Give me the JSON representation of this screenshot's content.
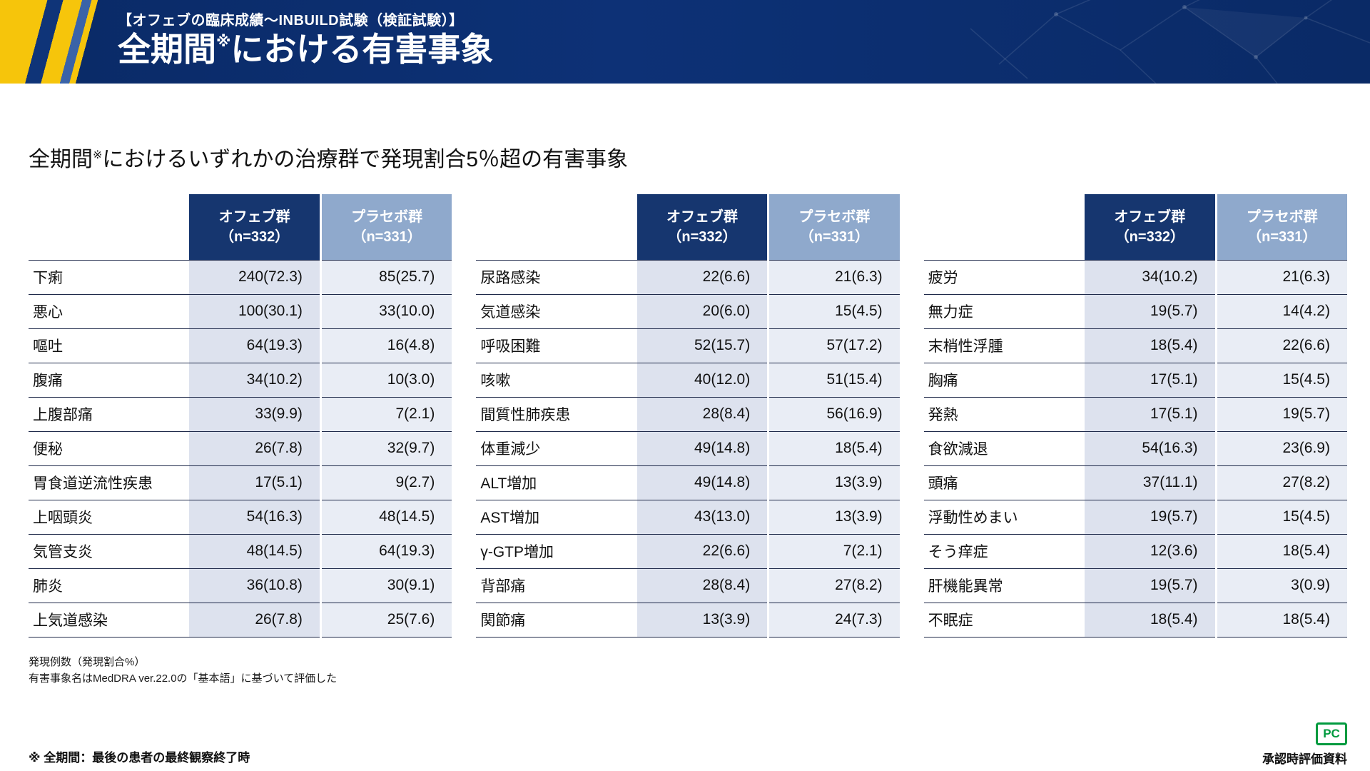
{
  "header": {
    "subtitle": "【オフェブの臨床成績〜INBUILD試験（検証試験）】",
    "title_main": "全期間",
    "title_sup": "※",
    "title_rest": "における有害事象"
  },
  "section": {
    "title_main": "全期間",
    "title_sup": "※",
    "title_rest": "におけるいずれかの治療群で発現割合5％超の有害事象"
  },
  "column_headers": {
    "ofev_name": "オフェブ群",
    "ofev_n": "（n=332）",
    "placebo_name": "プラセボ群",
    "placebo_n": "（n=331）"
  },
  "tables": [
    {
      "rows": [
        {
          "label": "下痢",
          "ofev": "240(72.3)",
          "placebo": "85(25.7)"
        },
        {
          "label": "悪心",
          "ofev": "100(30.1)",
          "placebo": "33(10.0)"
        },
        {
          "label": "嘔吐",
          "ofev": "64(19.3)",
          "placebo": "16(4.8)"
        },
        {
          "label": "腹痛",
          "ofev": "34(10.2)",
          "placebo": "10(3.0)"
        },
        {
          "label": "上腹部痛",
          "ofev": "33(9.9)",
          "placebo": "7(2.1)"
        },
        {
          "label": "便秘",
          "ofev": "26(7.8)",
          "placebo": "32(9.7)"
        },
        {
          "label": "胃食道逆流性疾患",
          "ofev": "17(5.1)",
          "placebo": "9(2.7)"
        },
        {
          "label": "上咽頭炎",
          "ofev": "54(16.3)",
          "placebo": "48(14.5)"
        },
        {
          "label": "気管支炎",
          "ofev": "48(14.5)",
          "placebo": "64(19.3)"
        },
        {
          "label": "肺炎",
          "ofev": "36(10.8)",
          "placebo": "30(9.1)"
        },
        {
          "label": "上気道感染",
          "ofev": "26(7.8)",
          "placebo": "25(7.6)"
        }
      ]
    },
    {
      "rows": [
        {
          "label": "尿路感染",
          "ofev": "22(6.6)",
          "placebo": "21(6.3)"
        },
        {
          "label": "気道感染",
          "ofev": "20(6.0)",
          "placebo": "15(4.5)"
        },
        {
          "label": "呼吸困難",
          "ofev": "52(15.7)",
          "placebo": "57(17.2)"
        },
        {
          "label": "咳嗽",
          "ofev": "40(12.0)",
          "placebo": "51(15.4)"
        },
        {
          "label": "間質性肺疾患",
          "ofev": "28(8.4)",
          "placebo": "56(16.9)"
        },
        {
          "label": "体重減少",
          "ofev": "49(14.8)",
          "placebo": "18(5.4)"
        },
        {
          "label": "ALT増加",
          "ofev": "49(14.8)",
          "placebo": "13(3.9)"
        },
        {
          "label": "AST増加",
          "ofev": "43(13.0)",
          "placebo": "13(3.9)"
        },
        {
          "label": "γ-GTP増加",
          "ofev": "22(6.6)",
          "placebo": "7(2.1)"
        },
        {
          "label": "背部痛",
          "ofev": "28(8.4)",
          "placebo": "27(8.2)"
        },
        {
          "label": "関節痛",
          "ofev": "13(3.9)",
          "placebo": "24(7.3)"
        }
      ]
    },
    {
      "rows": [
        {
          "label": "疲労",
          "ofev": "34(10.2)",
          "placebo": "21(6.3)"
        },
        {
          "label": "無力症",
          "ofev": "19(5.7)",
          "placebo": "14(4.2)"
        },
        {
          "label": "末梢性浮腫",
          "ofev": "18(5.4)",
          "placebo": "22(6.6)"
        },
        {
          "label": "胸痛",
          "ofev": "17(5.1)",
          "placebo": "15(4.5)"
        },
        {
          "label": "発熱",
          "ofev": "17(5.1)",
          "placebo": "19(5.7)"
        },
        {
          "label": "食欲減退",
          "ofev": "54(16.3)",
          "placebo": "23(6.9)"
        },
        {
          "label": "頭痛",
          "ofev": "37(11.1)",
          "placebo": "27(8.2)"
        },
        {
          "label": "浮動性めまい",
          "ofev": "19(5.7)",
          "placebo": "15(4.5)"
        },
        {
          "label": "そう痒症",
          "ofev": "12(3.6)",
          "placebo": "18(5.4)"
        },
        {
          "label": "肝機能異常",
          "ofev": "19(5.7)",
          "placebo": "3(0.9)"
        },
        {
          "label": "不眠症",
          "ofev": "18(5.4)",
          "placebo": "18(5.4)"
        }
      ]
    }
  ],
  "footnotes": [
    "発現例数（発現割合%）",
    "有害事象名はMedDRA ver.22.0の「基本語」に基づいて評価した"
  ],
  "footer": {
    "note": "※ 全期間：最後の患者の最終観察終了時",
    "right": "承認時評価資料",
    "logo": "PC"
  },
  "colors": {
    "banner_bg": "#0b2c6a",
    "accent_yellow": "#f6c50b",
    "ofev_header_bg": "#16366f",
    "placebo_header_bg": "#8fa9cc",
    "ofev_cell_bg": "#dde2ee",
    "placebo_cell_bg": "#e9edf5",
    "row_line": "#1f2a4a",
    "logo_green": "#009a3e"
  }
}
